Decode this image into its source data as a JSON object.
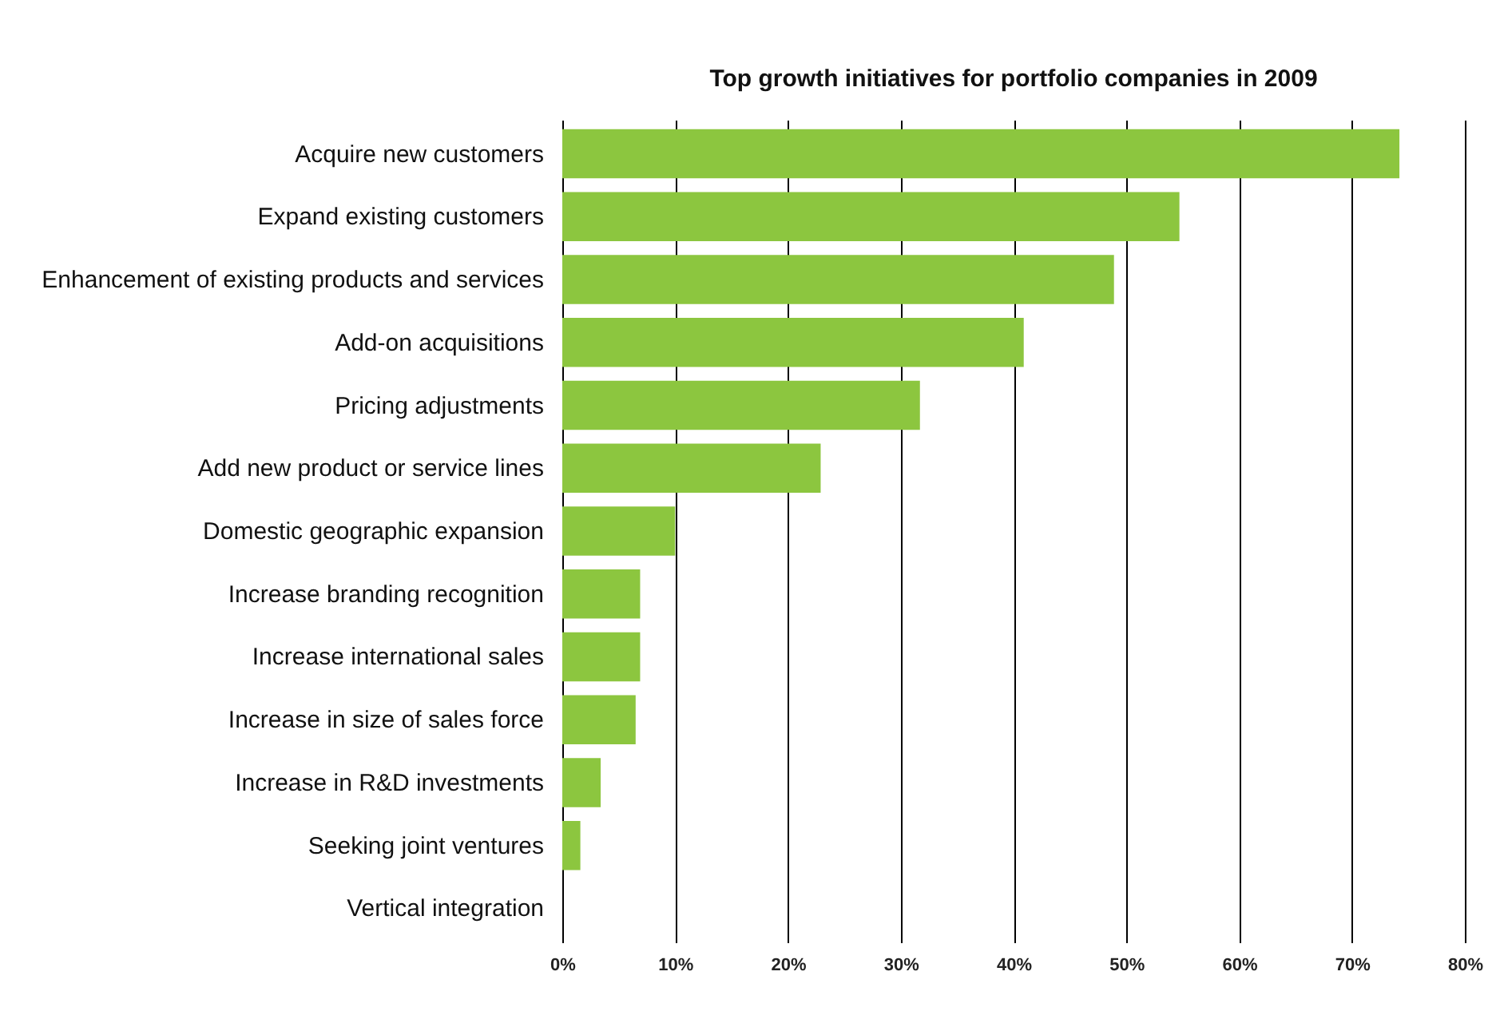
{
  "chart_data": {
    "type": "bar",
    "orientation": "horizontal",
    "title": "Top growth initiatives for portfolio companies in 2009",
    "categories": [
      "Acquire new customers",
      "Expand existing customers",
      "Enhancement of existing products and services",
      "Add-on acquisitions",
      "Pricing adjustments",
      "Add new product or service lines",
      "Domestic geographic expansion",
      "Increase branding recognition",
      "Increase international sales",
      "Increase in size of sales force",
      "Increase in R&D investments",
      "Seeking joint ventures",
      "Vertical integration"
    ],
    "values": [
      74.2,
      54.7,
      48.9,
      40.9,
      31.7,
      22.9,
      10.0,
      6.9,
      6.9,
      6.5,
      3.4,
      1.6,
      0
    ],
    "color": "#8cc63f",
    "xlim": [
      0,
      80
    ],
    "xticks": [
      {
        "value": 0,
        "label": "0%"
      },
      {
        "value": 10,
        "label": "10%"
      },
      {
        "value": 20,
        "label": "20%"
      },
      {
        "value": 30,
        "label": "30%"
      },
      {
        "value": 40,
        "label": "40%"
      },
      {
        "value": 50,
        "label": "50%"
      },
      {
        "value": 60,
        "label": "60%"
      },
      {
        "value": 70,
        "label": "70%"
      },
      {
        "value": 80,
        "label": "80%"
      }
    ],
    "grid": "x"
  }
}
